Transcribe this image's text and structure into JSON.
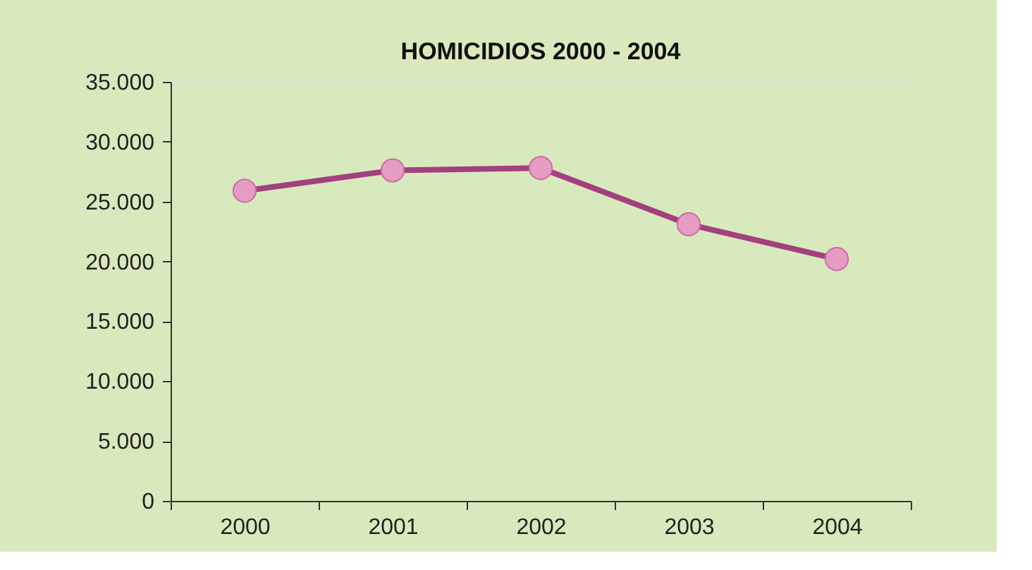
{
  "chart_data": {
    "type": "line",
    "title": "HOMICIDIOS 2000 - 2004",
    "categories": [
      "2000",
      "2001",
      "2002",
      "2003",
      "2004"
    ],
    "series": [
      {
        "color": "#a3407f",
        "values": [
          25900,
          27600,
          27800,
          23100,
          20200
        ]
      }
    ],
    "ylim": [
      0,
      35000
    ],
    "yticks": [
      {
        "value": 0,
        "label": "0"
      },
      {
        "value": 5000,
        "label": "5.000"
      },
      {
        "value": 10000,
        "label": "10.000"
      },
      {
        "value": 15000,
        "label": "15.000"
      },
      {
        "value": 20000,
        "label": "20.000"
      },
      {
        "value": 25000,
        "label": "25.000"
      },
      {
        "value": 30000,
        "label": "30.000"
      },
      {
        "value": 35000,
        "label": "35.000"
      }
    ],
    "marker": "circle",
    "line_style": "solid",
    "grid": false
  }
}
